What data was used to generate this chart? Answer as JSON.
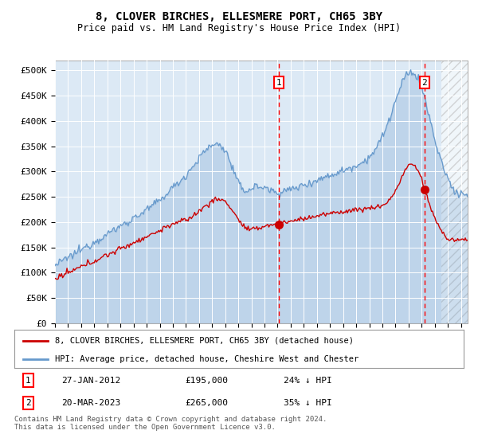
{
  "title": "8, CLOVER BIRCHES, ELLESMERE PORT, CH65 3BY",
  "subtitle": "Price paid vs. HM Land Registry's House Price Index (HPI)",
  "ylabel_ticks": [
    "£0",
    "£50K",
    "£100K",
    "£150K",
    "£200K",
    "£250K",
    "£300K",
    "£350K",
    "£400K",
    "£450K",
    "£500K"
  ],
  "ytick_vals": [
    0,
    50000,
    100000,
    150000,
    200000,
    250000,
    300000,
    350000,
    400000,
    450000,
    500000
  ],
  "xlim_start": 1995.0,
  "xlim_end": 2026.5,
  "ylim": [
    0,
    520000
  ],
  "marker1_x": 2012.08,
  "marker1_y": 195000,
  "marker1_label": "27-JAN-2012",
  "marker1_price": "£195,000",
  "marker1_pct": "24% ↓ HPI",
  "marker2_x": 2023.22,
  "marker2_y": 265000,
  "marker2_label": "20-MAR-2023",
  "marker2_price": "£265,000",
  "marker2_pct": "35% ↓ HPI",
  "legend_house": "8, CLOVER BIRCHES, ELLESMERE PORT, CH65 3BY (detached house)",
  "legend_hpi": "HPI: Average price, detached house, Cheshire West and Chester",
  "footnote": "Contains HM Land Registry data © Crown copyright and database right 2024.\nThis data is licensed under the Open Government Licence v3.0.",
  "hpi_color": "#6699cc",
  "house_color": "#cc0000",
  "bg_color": "#dce9f5",
  "hatch_start": 2024.5,
  "title_fontsize": 10,
  "subtitle_fontsize": 8.5
}
